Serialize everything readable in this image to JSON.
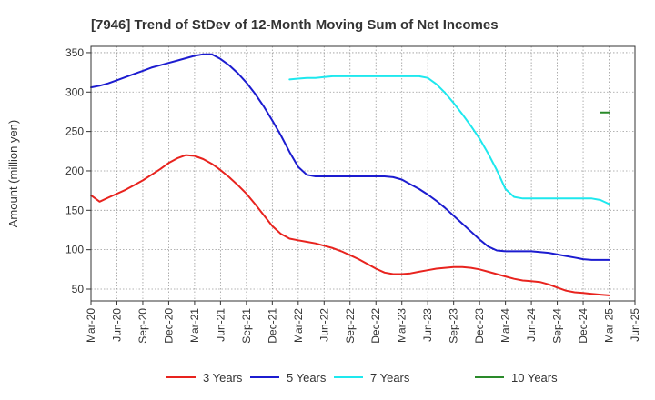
{
  "chart_data": {
    "type": "line",
    "title": "[7946]  Trend of StDev of 12-Month Moving Sum of Net Incomes",
    "xlabel": "",
    "ylabel": "Amount (million yen)",
    "ylim": [
      35,
      358
    ],
    "yticks": [
      50,
      100,
      150,
      200,
      250,
      300,
      350
    ],
    "x_start": "2020-03",
    "x_end": "2025-06",
    "xticks": [
      "Mar-20",
      "Jun-20",
      "Sep-20",
      "Dec-20",
      "Mar-21",
      "Jun-21",
      "Sep-21",
      "Dec-21",
      "Mar-22",
      "Jun-22",
      "Sep-22",
      "Dec-22",
      "Mar-23",
      "Jun-23",
      "Sep-23",
      "Dec-23",
      "Mar-24",
      "Jun-24",
      "Sep-24",
      "Dec-24",
      "Mar-25",
      "Jun-25"
    ],
    "grid": true,
    "legend_position": "bottom",
    "series": [
      {
        "name": "3 Years",
        "color": "#e8231e",
        "x": [
          "2020-03",
          "2020-04",
          "2020-05",
          "2020-06",
          "2020-07",
          "2020-08",
          "2020-09",
          "2020-10",
          "2020-11",
          "2020-12",
          "2021-01",
          "2021-02",
          "2021-03",
          "2021-04",
          "2021-05",
          "2021-06",
          "2021-07",
          "2021-08",
          "2021-09",
          "2021-10",
          "2021-11",
          "2021-12",
          "2022-01",
          "2022-02",
          "2022-03",
          "2022-04",
          "2022-05",
          "2022-06",
          "2022-07",
          "2022-08",
          "2022-09",
          "2022-10",
          "2022-11",
          "2022-12",
          "2023-01",
          "2023-02",
          "2023-03",
          "2023-04",
          "2023-05",
          "2023-06",
          "2023-07",
          "2023-08",
          "2023-09",
          "2023-10",
          "2023-11",
          "2023-12",
          "2024-01",
          "2024-02",
          "2024-03",
          "2024-04",
          "2024-05",
          "2024-06",
          "2024-07",
          "2024-08",
          "2024-09",
          "2024-10",
          "2024-11",
          "2024-12",
          "2025-01",
          "2025-02",
          "2025-03"
        ],
        "values": [
          169,
          161,
          166,
          171,
          176,
          182,
          188,
          195,
          202,
          210,
          216,
          220,
          219,
          215,
          209,
          201,
          192,
          182,
          171,
          158,
          144,
          130,
          120,
          114,
          112,
          110,
          108,
          105,
          102,
          98,
          93,
          88,
          82,
          76,
          71,
          69,
          69,
          70,
          72,
          74,
          76,
          77,
          78,
          78,
          77,
          75,
          72,
          69,
          66,
          63,
          61,
          60,
          59,
          56,
          52,
          48,
          46,
          45,
          44,
          43,
          42
        ]
      },
      {
        "name": "5 Years",
        "color": "#1c1cd0",
        "x": [
          "2020-03",
          "2020-04",
          "2020-05",
          "2020-06",
          "2020-07",
          "2020-08",
          "2020-09",
          "2020-10",
          "2020-11",
          "2020-12",
          "2021-01",
          "2021-02",
          "2021-03",
          "2021-04",
          "2021-05",
          "2021-06",
          "2021-07",
          "2021-08",
          "2021-09",
          "2021-10",
          "2021-11",
          "2021-12",
          "2022-01",
          "2022-02",
          "2022-03",
          "2022-04",
          "2022-05",
          "2022-06",
          "2022-07",
          "2022-08",
          "2022-09",
          "2022-10",
          "2022-11",
          "2022-12",
          "2023-01",
          "2023-02",
          "2023-03",
          "2023-04",
          "2023-05",
          "2023-06",
          "2023-07",
          "2023-08",
          "2023-09",
          "2023-10",
          "2023-11",
          "2023-12",
          "2024-01",
          "2024-02",
          "2024-03",
          "2024-04",
          "2024-05",
          "2024-06",
          "2024-07",
          "2024-08",
          "2024-09",
          "2024-10",
          "2024-11",
          "2024-12",
          "2025-01",
          "2025-02",
          "2025-03"
        ],
        "values": [
          306,
          308,
          311,
          315,
          319,
          323,
          327,
          331,
          334,
          337,
          340,
          343,
          346,
          348,
          348,
          342,
          334,
          324,
          312,
          298,
          282,
          264,
          245,
          224,
          205,
          195,
          193,
          193,
          193,
          193,
          193,
          193,
          193,
          193,
          193,
          192,
          189,
          183,
          177,
          170,
          162,
          153,
          143,
          133,
          123,
          113,
          104,
          99,
          98,
          98,
          98,
          98,
          97,
          96,
          94,
          92,
          90,
          88,
          87,
          87,
          87
        ]
      },
      {
        "name": "7 Years",
        "color": "#1ee8ee",
        "x": [
          "2022-02",
          "2022-03",
          "2022-04",
          "2022-05",
          "2022-06",
          "2022-07",
          "2022-08",
          "2022-09",
          "2022-10",
          "2022-11",
          "2022-12",
          "2023-01",
          "2023-02",
          "2023-03",
          "2023-04",
          "2023-05",
          "2023-06",
          "2023-07",
          "2023-08",
          "2023-09",
          "2023-10",
          "2023-11",
          "2023-12",
          "2024-01",
          "2024-02",
          "2024-03",
          "2024-04",
          "2024-05",
          "2024-06",
          "2024-07",
          "2024-08",
          "2024-09",
          "2024-10",
          "2024-11",
          "2024-12",
          "2025-01",
          "2025-02",
          "2025-03"
        ],
        "values": [
          316,
          317,
          318,
          318,
          319,
          320,
          320,
          320,
          320,
          320,
          320,
          320,
          320,
          320,
          320,
          320,
          318,
          310,
          299,
          286,
          272,
          257,
          241,
          222,
          201,
          177,
          167,
          165,
          165,
          165,
          165,
          165,
          165,
          165,
          165,
          165,
          163,
          158
        ]
      },
      {
        "name": "10 Years",
        "color": "#2a8a2a",
        "x": [
          "2025-02",
          "2025-03"
        ],
        "values": [
          274,
          274
        ]
      }
    ]
  }
}
